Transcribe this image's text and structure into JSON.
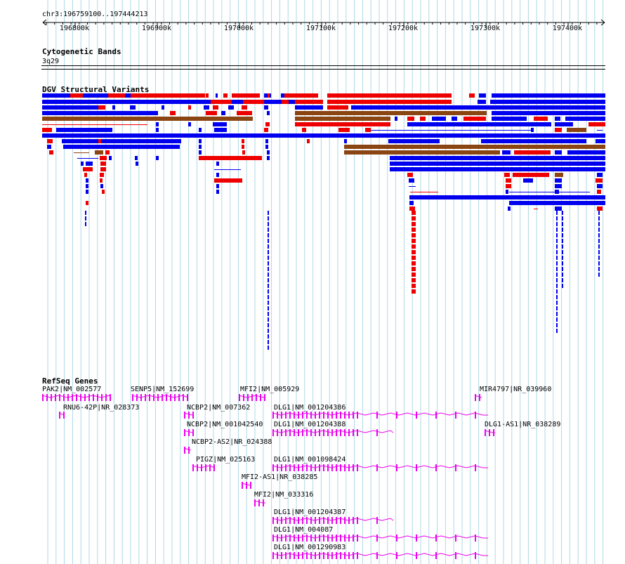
{
  "ruler": {
    "label": "chr3:196759100..197444213",
    "ticks": [
      "196800k",
      "196900k",
      "197000k",
      "197100k",
      "197200k",
      "197300k",
      "197400k"
    ]
  },
  "cytoband": {
    "title": "Cytogenetic Bands",
    "band": "3q29"
  },
  "dgv": {
    "title": "DGV Structural Variants"
  },
  "refseq": {
    "title": "RefSeq Genes",
    "genes": [
      {
        "label": "PAK2|NM_002577"
      },
      {
        "label": "SENP5|NM_152699"
      },
      {
        "label": "MFI2|NM_005929"
      },
      {
        "label": "MIR4797|NR_039960"
      },
      {
        "label": "RNU6-42P|NR_028373"
      },
      {
        "label": "NCBP2|NM_007362"
      },
      {
        "label": "DLG1|NM_001204386"
      },
      {
        "label": "NCBP2|NM_001042540"
      },
      {
        "label": "DLG1|NM_001204388"
      },
      {
        "label": "DLG1-AS1|NR_038289"
      },
      {
        "label": "NCBP2-AS2|NR_024388"
      },
      {
        "label": "PIGZ|NM_025163"
      },
      {
        "label": "DLG1|NM_001098424"
      },
      {
        "label": "MFI2-AS1|NR_038285"
      },
      {
        "label": "MFI2|NM_033316"
      },
      {
        "label": "DLG1|NM_001204387"
      },
      {
        "label": "DLG1|NM_004087"
      },
      {
        "label": "DLG1|NM_001290983"
      }
    ]
  },
  "colors": {
    "gain": "#0000ee",
    "loss": "#ee0000",
    "both": "#8b4513",
    "gene": "#ee00ee",
    "grid": "#add8e6"
  }
}
